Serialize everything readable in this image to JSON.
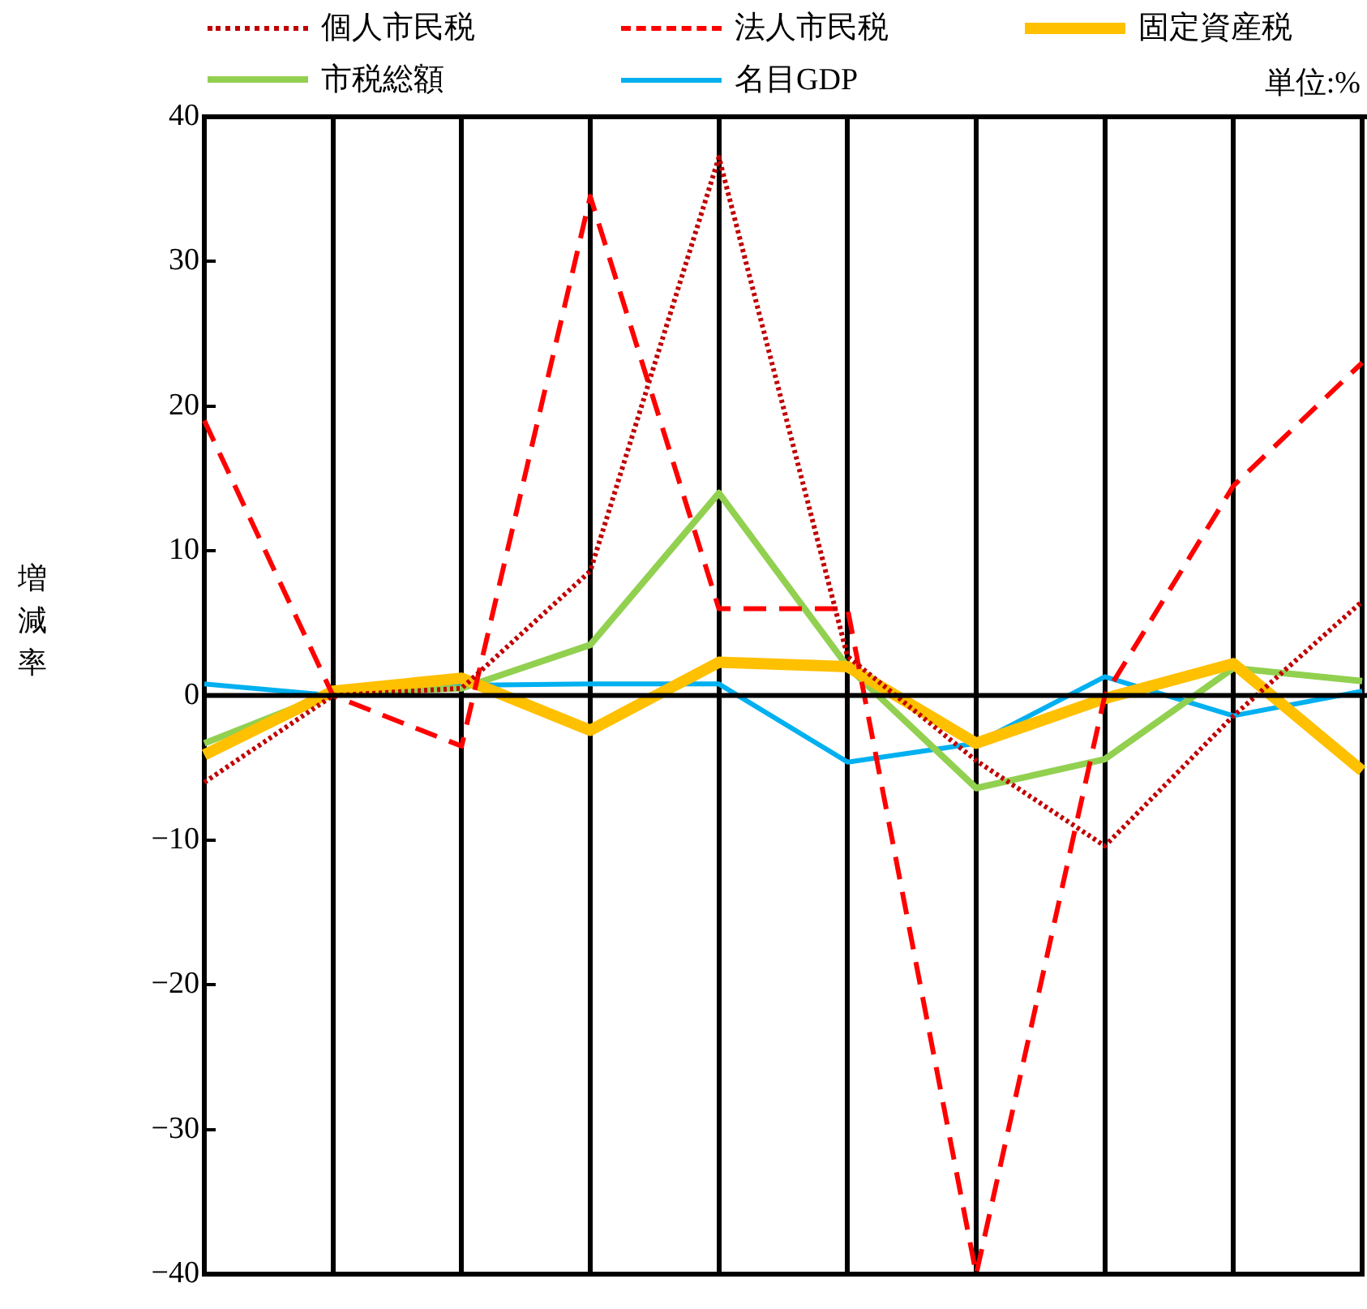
{
  "chart_data": {
    "type": "line",
    "ylabel": "増減率",
    "annotations": [
      "単位:%"
    ],
    "categories": [
      null,
      null,
      null,
      null,
      null,
      null,
      null,
      null,
      null,
      null
    ],
    "series": [
      {
        "name": "個人市民税",
        "color": "#c00000",
        "line_style": "dotted",
        "values": [
          -6,
          0,
          0.5,
          8.6,
          37.2,
          2.7,
          -4.5,
          -10.4,
          -1.4,
          6.5
        ]
      },
      {
        "name": "法人市民税",
        "color": "#ff0000",
        "line_style": "dashed",
        "values": [
          19,
          0,
          -3.5,
          34.5,
          6,
          6,
          -40,
          0,
          14.5,
          23
        ]
      },
      {
        "name": "固定資産税",
        "color": "#ffc000",
        "line_style": "solid",
        "values": [
          -4.1,
          0.3,
          1.2,
          -2.4,
          2.3,
          2,
          -3.3,
          -0.2,
          2.2,
          -5.2
        ]
      },
      {
        "name": "市税総額",
        "color": "#92d050",
        "line_style": "solid",
        "values": [
          -3.3,
          0.2,
          0.5,
          3.5,
          14,
          2,
          -6.4,
          -4.4,
          1.9,
          1
        ]
      },
      {
        "name": "名目GDP",
        "color": "#00b0f0",
        "line_style": "solid",
        "values": [
          0.8,
          0,
          0.7,
          0.8,
          0.8,
          -4.6,
          -3.3,
          1.3,
          -1.4,
          0.3
        ]
      }
    ],
    "ylim": [
      -40,
      40
    ],
    "yticks": [
      {
        "value": -40,
        "label": "−40"
      },
      {
        "value": -30,
        "label": "−30"
      },
      {
        "value": -20,
        "label": "−20"
      },
      {
        "value": -10,
        "label": "−10"
      },
      0,
      10,
      20,
      30,
      40
    ],
    "ref_lines": [
      {
        "axis": "y",
        "value": 0,
        "color": "#000000"
      }
    ],
    "grid": "x",
    "legend": "top",
    "marker": "none",
    "tick_labels": "y"
  }
}
